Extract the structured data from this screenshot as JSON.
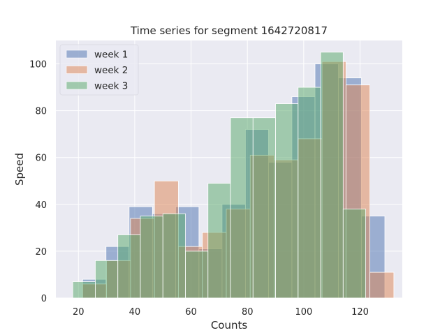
{
  "chart_data": {
    "type": "bar",
    "title": "Time series for segment 1642720817",
    "xlabel": "Counts",
    "ylabel": "Speed",
    "xlim": [
      12,
      135
    ],
    "ylim": [
      0,
      110
    ],
    "xticks": [
      20,
      40,
      60,
      80,
      100,
      120
    ],
    "yticks": [
      0,
      20,
      40,
      60,
      80,
      100
    ],
    "grid": true,
    "legend_position": "top-left",
    "background": "#eaeaf2",
    "series": [
      {
        "name": "week 1",
        "color": "#4c72b0",
        "bins": [
          {
            "x0": 21.5,
            "x1": 29.8,
            "y": 8
          },
          {
            "x0": 29.8,
            "x1": 38.0,
            "y": 22
          },
          {
            "x0": 38.0,
            "x1": 46.3,
            "y": 39
          },
          {
            "x0": 46.3,
            "x1": 54.5,
            "y": 36
          },
          {
            "x0": 54.5,
            "x1": 62.8,
            "y": 39
          },
          {
            "x0": 62.8,
            "x1": 71.0,
            "y": 21
          },
          {
            "x0": 71.0,
            "x1": 79.3,
            "y": 40
          },
          {
            "x0": 79.3,
            "x1": 87.5,
            "y": 72
          },
          {
            "x0": 87.5,
            "x1": 95.8,
            "y": 58
          },
          {
            "x0": 95.8,
            "x1": 104.0,
            "y": 86
          },
          {
            "x0": 104.0,
            "x1": 112.3,
            "y": 100
          },
          {
            "x0": 112.3,
            "x1": 120.5,
            "y": 94
          },
          {
            "x0": 120.5,
            "x1": 128.8,
            "y": 35
          }
        ]
      },
      {
        "name": "week 2",
        "color": "#dd8452",
        "bins": [
          {
            "x0": 21.5,
            "x1": 30.0,
            "y": 6
          },
          {
            "x0": 30.0,
            "x1": 38.5,
            "y": 16
          },
          {
            "x0": 38.5,
            "x1": 47.0,
            "y": 34
          },
          {
            "x0": 47.0,
            "x1": 55.5,
            "y": 50
          },
          {
            "x0": 55.5,
            "x1": 64.0,
            "y": 22
          },
          {
            "x0": 64.0,
            "x1": 72.5,
            "y": 28
          },
          {
            "x0": 72.5,
            "x1": 81.0,
            "y": 38
          },
          {
            "x0": 81.0,
            "x1": 89.5,
            "y": 61
          },
          {
            "x0": 89.5,
            "x1": 98.0,
            "y": 59
          },
          {
            "x0": 98.0,
            "x1": 106.5,
            "y": 68
          },
          {
            "x0": 106.5,
            "x1": 115.0,
            "y": 101
          },
          {
            "x0": 115.0,
            "x1": 123.5,
            "y": 91
          },
          {
            "x0": 123.5,
            "x1": 132.0,
            "y": 11
          }
        ]
      },
      {
        "name": "week 3",
        "color": "#55a868",
        "bins": [
          {
            "x0": 18.0,
            "x1": 26.0,
            "y": 7
          },
          {
            "x0": 26.0,
            "x1": 34.0,
            "y": 16
          },
          {
            "x0": 34.0,
            "x1": 42.0,
            "y": 27
          },
          {
            "x0": 42.0,
            "x1": 50.0,
            "y": 35
          },
          {
            "x0": 50.0,
            "x1": 58.0,
            "y": 36
          },
          {
            "x0": 58.0,
            "x1": 66.0,
            "y": 20
          },
          {
            "x0": 66.0,
            "x1": 74.0,
            "y": 49
          },
          {
            "x0": 74.0,
            "x1": 82.0,
            "y": 77
          },
          {
            "x0": 82.0,
            "x1": 90.0,
            "y": 77
          },
          {
            "x0": 90.0,
            "x1": 98.0,
            "y": 83
          },
          {
            "x0": 98.0,
            "x1": 106.0,
            "y": 90
          },
          {
            "x0": 106.0,
            "x1": 114.0,
            "y": 105
          },
          {
            "x0": 114.0,
            "x1": 122.0,
            "y": 38
          }
        ]
      }
    ]
  }
}
